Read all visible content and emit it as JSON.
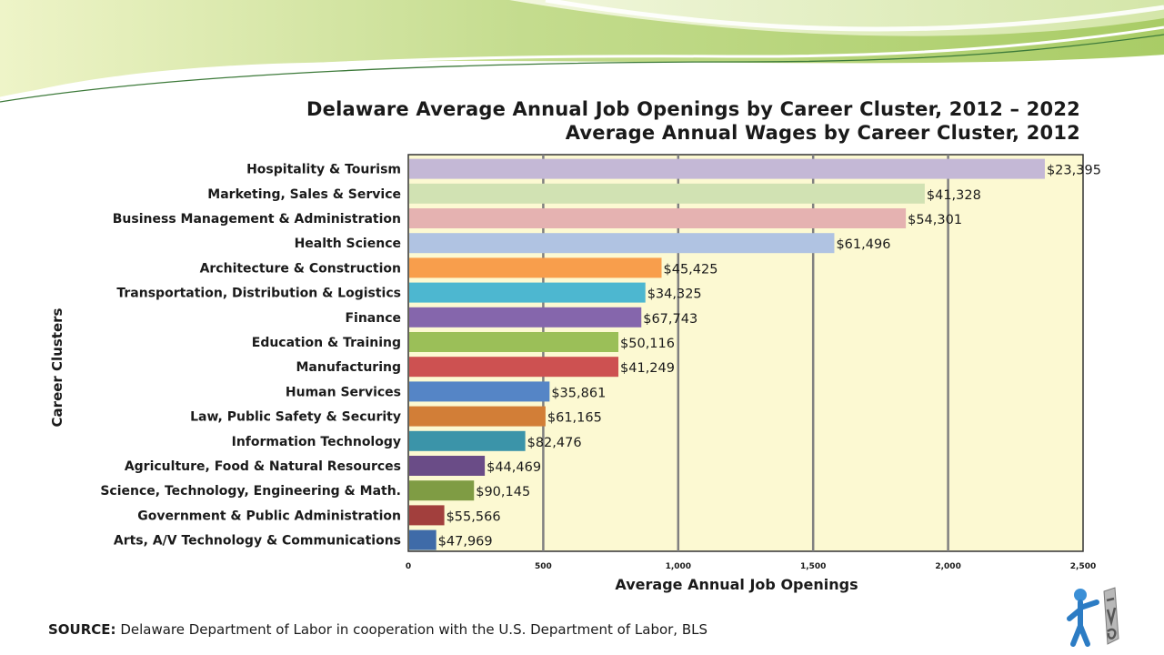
{
  "slide": {
    "source_prefix": "SOURCE:",
    "source_text": " Delaware Department of Labor in cooperation with the U.S. Department of Labor, BLS"
  },
  "colors": {
    "plot_background": "#fcf9d2",
    "grid": "#808080"
  },
  "chart_data": {
    "type": "bar",
    "orientation": "horizontal",
    "title": "Delaware Average Annual Job Openings by Career Cluster, 2012 – 2022",
    "subtitle": "Average Annual Wages by Career Cluster, 2012",
    "xlabel": "Average Annual Job Openings",
    "ylabel": "Career Clusters",
    "xlim": [
      0,
      2500
    ],
    "xticks": [
      "0",
      "500",
      "1,000",
      "1,500",
      "2,000",
      "2,500"
    ],
    "grid": true,
    "categories": [
      "Hospitality & Tourism",
      "Marketing, Sales & Service",
      "Business Management & Administration",
      "Health Science",
      "Architecture & Construction",
      "Transportation, Distribution & Logistics",
      "Finance",
      "Education & Training",
      "Manufacturing",
      "Human Services",
      "Law, Public Safety & Security",
      "Information Technology",
      "Agriculture, Food & Natural Resources",
      "Science, Technology, Engineering & Math.",
      "Government & Public Administration",
      "Arts, A/V Technology & Communications"
    ],
    "values": [
      2355,
      1910,
      1840,
      1575,
      935,
      875,
      860,
      775,
      775,
      520,
      505,
      430,
      280,
      240,
      130,
      100
    ],
    "wage_labels": [
      "$23,395",
      "$41,328",
      "$54,301",
      "$61,496",
      "$45,425",
      "$34,325",
      "$67,743",
      "$50,116",
      "$41,249",
      "$35,861",
      "$61,165",
      "$82,476",
      "$44,469",
      "$90,145",
      "$55,566",
      "$47,969"
    ],
    "bar_colors": [
      "#c4b8d6",
      "#d1e2b3",
      "#e5b2b1",
      "#b0c3e2",
      "#f89e4c",
      "#4db7d0",
      "#8566ac",
      "#9bbf58",
      "#cd5151",
      "#5585c6",
      "#d27e37",
      "#3b94a9",
      "#6a4c87",
      "#7f9c44",
      "#a23f3d",
      "#3f6ba8"
    ]
  }
}
